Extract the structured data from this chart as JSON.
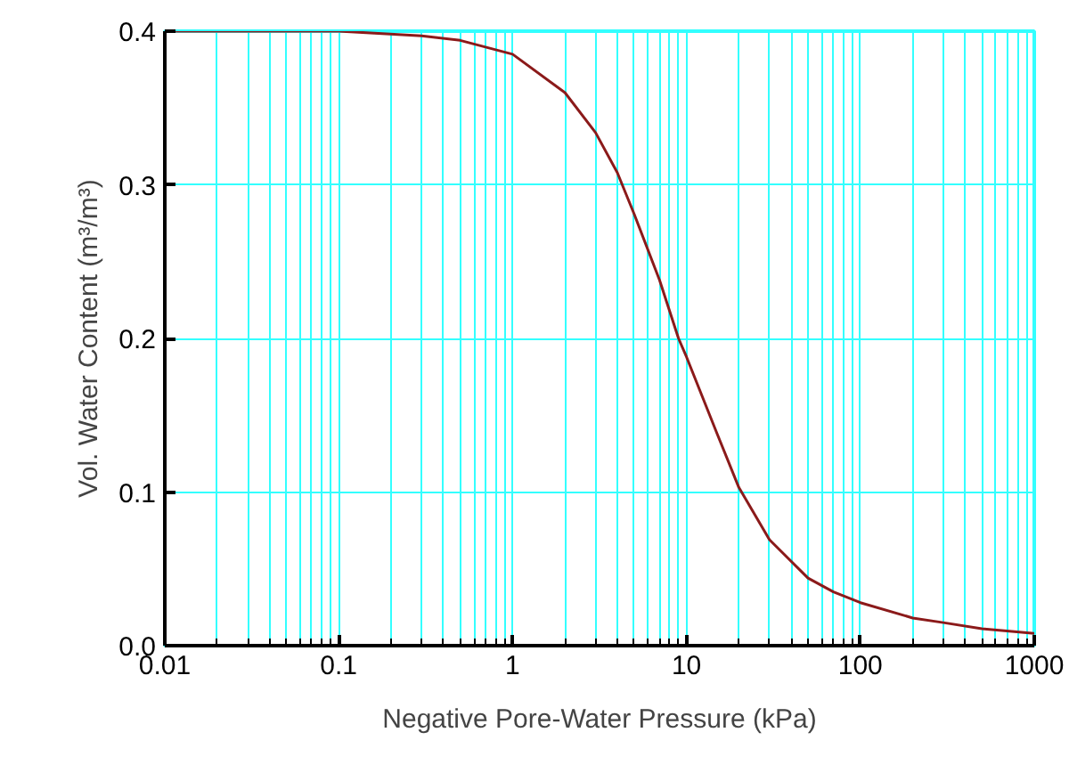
{
  "chart_data": {
    "type": "line",
    "xlabel": "Negative Pore-Water Pressure (kPa)",
    "ylabel": "Vol. Water Content (m³/m³)",
    "x": [
      0.01,
      0.03,
      0.1,
      0.3,
      0.5,
      1,
      2,
      3,
      4,
      5,
      7,
      9,
      10,
      15,
      20,
      30,
      50,
      70,
      100,
      200,
      300,
      500,
      1000
    ],
    "series": [
      {
        "color": "#8b1a1a",
        "values": [
          0.4,
          0.4,
          0.4,
          0.397,
          0.394,
          0.385,
          0.36,
          0.334,
          0.308,
          0.281,
          0.238,
          0.2,
          0.188,
          0.138,
          0.103,
          0.069,
          0.044,
          0.035,
          0.028,
          0.018,
          0.015,
          0.011,
          0.008
        ]
      }
    ],
    "log": "x",
    "xlim": [
      0.01,
      1000
    ],
    "ylim": [
      0,
      0.4
    ],
    "xticks": [
      0.01,
      0.1,
      1,
      10,
      100,
      1000
    ],
    "yticks": [
      {
        "value": 0,
        "label": "0.0"
      },
      {
        "value": 0.1,
        "label": "0.1"
      },
      {
        "value": 0.2,
        "label": "0.2"
      },
      {
        "value": 0.3,
        "label": "0.3"
      },
      {
        "value": 0.4,
        "label": "0.4"
      }
    ],
    "grid": true,
    "marker": "none",
    "line_style": "solid"
  }
}
